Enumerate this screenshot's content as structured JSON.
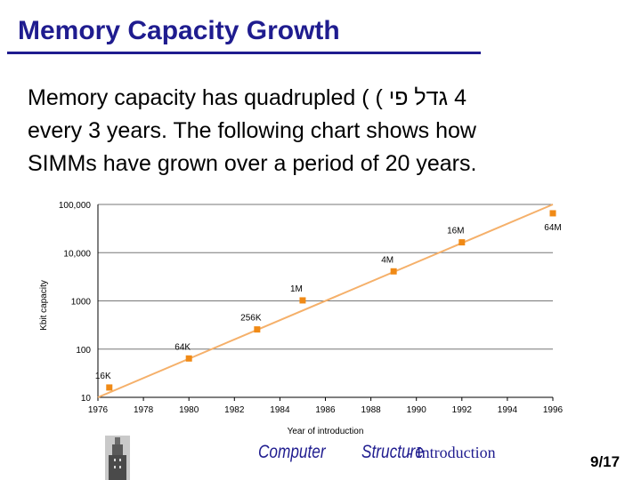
{
  "slide": {
    "title": "Memory Capacity Growth",
    "body_line1_start": "Memory capacity has quadrupled ( (",
    "body_line1_rtl": "4 גדל פי",
    "body_line2": "every 3 years. The following chart shows how",
    "body_line3": "SIMMs have grown over a period of 20 years."
  },
  "footer": {
    "word1": "Computer",
    "word2": "Structure",
    "word3": "- Introduction",
    "page": "9/17"
  },
  "chart_data": {
    "type": "scatter",
    "title": "",
    "xlabel": "Year of introduction",
    "ylabel": "Kbit capacity",
    "y_scale": "log",
    "xlim": [
      1976,
      1996
    ],
    "ylim": [
      10,
      100000
    ],
    "x_ticks": [
      "1976",
      "1978",
      "1980",
      "1982",
      "1984",
      "1986",
      "1988",
      "1990",
      "1992",
      "1994",
      "1996"
    ],
    "y_ticks": [
      {
        "value": 10,
        "label": "10"
      },
      {
        "value": 100,
        "label": "100"
      },
      {
        "value": 1000,
        "label": "1000"
      },
      {
        "value": 10000,
        "label": "10,000"
      },
      {
        "value": 100000,
        "label": "100,000"
      }
    ],
    "grid": "horizontal",
    "marker_color": "#f08a16",
    "trend_color": "#f5b06a",
    "points": [
      {
        "x": 1976.5,
        "y": 16,
        "label": "16K"
      },
      {
        "x": 1980,
        "y": 64,
        "label": "64K"
      },
      {
        "x": 1983,
        "y": 256,
        "label": "256K"
      },
      {
        "x": 1985,
        "y": 1024,
        "label": "1M"
      },
      {
        "x": 1989,
        "y": 4096,
        "label": "4M"
      },
      {
        "x": 1992,
        "y": 16384,
        "label": "16M"
      },
      {
        "x": 1996,
        "y": 65536,
        "label": "64M"
      }
    ],
    "trend": [
      {
        "x": 1976,
        "y": 10
      },
      {
        "x": 1996,
        "y": 100000
      }
    ]
  }
}
